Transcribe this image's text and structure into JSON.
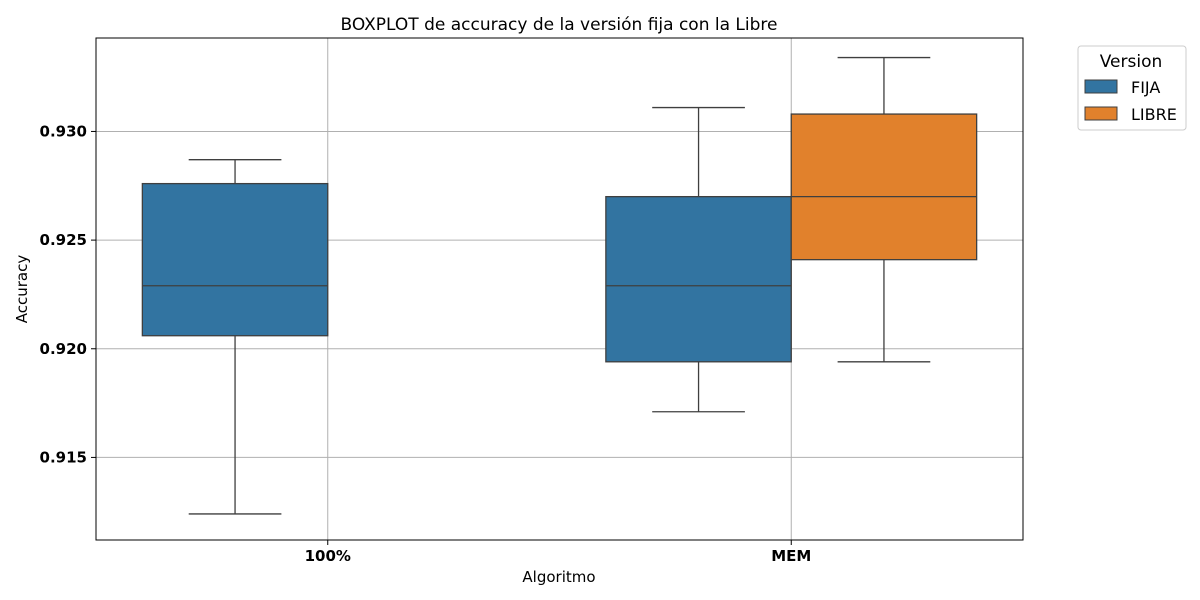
{
  "chart_data": {
    "type": "boxplot",
    "title": "BOXPLOT de accuracy de la versión fija con la Libre",
    "xlabel": "Algoritmo",
    "ylabel": "Accuracy",
    "categories": [
      "100%",
      "MEM"
    ],
    "ylim": [
      0.9112,
      0.9343
    ],
    "yticks": [
      0.915,
      0.92,
      0.925,
      0.93
    ],
    "ytick_labels": [
      "0.915",
      "0.920",
      "0.925",
      "0.930"
    ],
    "grid": true,
    "legend": {
      "title": "Version",
      "placement": "outside-top-right",
      "entries": [
        "FIJA",
        "LIBRE"
      ]
    },
    "series": [
      {
        "name": "FIJA",
        "color": "#3274a1",
        "boxes": [
          {
            "category": "100%",
            "whisker_low": 0.9124,
            "q1": 0.9206,
            "median": 0.9229,
            "q3": 0.9276,
            "whisker_high": 0.9287
          },
          {
            "category": "MEM",
            "whisker_low": 0.9171,
            "q1": 0.9194,
            "median": 0.9229,
            "q3": 0.927,
            "whisker_high": 0.9311
          }
        ]
      },
      {
        "name": "LIBRE",
        "color": "#e1812c",
        "boxes": [
          {
            "category": "MEM",
            "whisker_low": 0.9194,
            "q1": 0.9241,
            "median": 0.927,
            "q3": 0.9308,
            "whisker_high": 0.9334
          }
        ]
      }
    ]
  }
}
